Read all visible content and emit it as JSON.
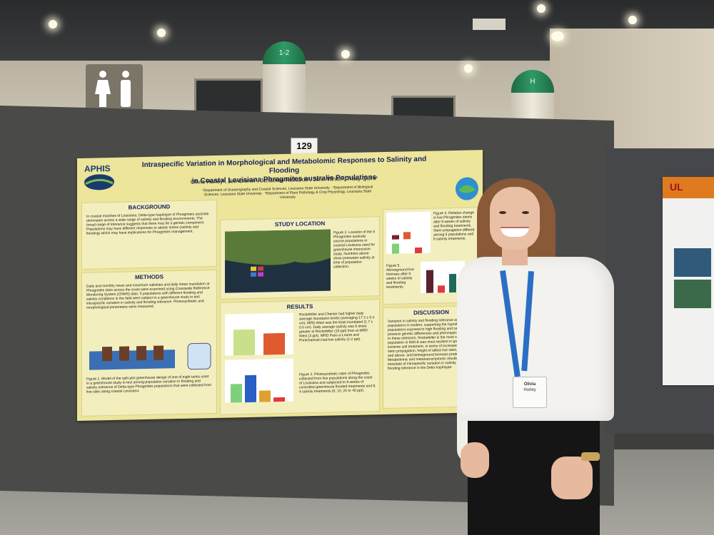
{
  "booth_number": "129",
  "column_labels": [
    "1-2",
    "H"
  ],
  "poster": {
    "logo_text": "APHIS",
    "title_line1": "Intraspecific Variation in Morphological and Metabolomic Responses to Salinity and Flooding",
    "title_line2": "in Coastal Louisiana Phragmites australis Populations",
    "authors": "Olivia Hurley¹, Jim Cronin², Jonathan Richards³, John White¹, Tracy Quirk¹",
    "affiliations": "¹Department of Oceanography and Coastal Sciences, Louisiana State University · ²Department of Biological Sciences, Louisiana State University · ³Department of Plant Pathology & Crop Physiology, Louisiana State University",
    "background_title": "BACKGROUND",
    "background_text": "In coastal marshes of Louisiana, Delta-type haplotype of Phragmites australis dominates across a wide range of salinity and flooding environments. The broad range of tolerance suggests that there may be a genetic component. Populations may have different responses to abiotic stress (salinity and flooding) which may have implications for Phragmites management.",
    "methods_title": "METHODS",
    "methods_text": "Daily and monthly mean and maximum salinities and daily mean inundation at Phragmites sites across the coast were examined using Coastwide Reference Monitoring System (CRMS) data. 5 populations with different flooding and salinity conditions in the field were subject to a greenhouse study to test intraspecific variation in salinity and flooding tolerance. Photosynthetic and morphological parameters were measured.",
    "figure1_caption": "Figure 1. Model of the split-plot greenhouse design of one of eight tanks used in a greenhouse study to test among-population variation in flooding and salinity tolerance of Delta-type Phragmites populations that were collected from five sites along coastal Louisiana.",
    "study_location_title": "STUDY LOCATION",
    "figure2_caption": "Figure 2. Location of the 5 Phragmites australis source populations in coastal Louisiana used for greenhouse mesocosm study. Numbers above show porewater salinity at time of population collection.",
    "results_title": "RESULTS",
    "results_text": "Rockefeller and Chenier had higher daily average inundation levels (averaging 17.3 ± 0.4 cm). MRD West was the least inundated (1.7 ± 0.5 cm). Daily average salinity was 6 times greater at Rockefeller (15 ppt) than at MRD West (3 ppt). MRD Pass-a-Loutre and Pontchartrain had low salinity (1-2 ppt).",
    "figure3_caption": "Figure 3. Photosynthetic rates of Phragmites collected from five populations along the coast of Louisiana and subjected to 8 weeks of controlled greenhouse flooded treatments and 8, 4 salinity treatments (0, 10, 20 or 40 ppt).",
    "figure4_caption": "Figure 4. Relative change in live Phragmites stems after 8 weeks of salinity and flooding treatments. Stem propagation differed among 5 populations and 8 salinity treatments.",
    "figure5_caption": "Figure 5. Aboveground live biomass after 8 weeks of salinity and flooding treatments.",
    "discussion_title": "DISCUSSION",
    "discussion_text": "Variation in salinity and flooding tolerance among populations is evident, supporting the hypothesis that populations exposed to high flooding and salinities possess genetic differences and phenotypic responses to these stressors. Rockefeller is the most saline population in field & was most resilient in greenhouse extreme salt treatment, in terms of increases in live stem propagation, height of tallest live stem, leaf area, and above- and belowground biomass production. Metabolomic and metatranscriptomic results will further elucidate of intraspecific variation in salinity and flooding tolerance in the Delta haplotype."
  },
  "badge": {
    "name": "Olivia",
    "surname": "Hurley"
  },
  "side_poster": {
    "logo_text": "UL"
  }
}
